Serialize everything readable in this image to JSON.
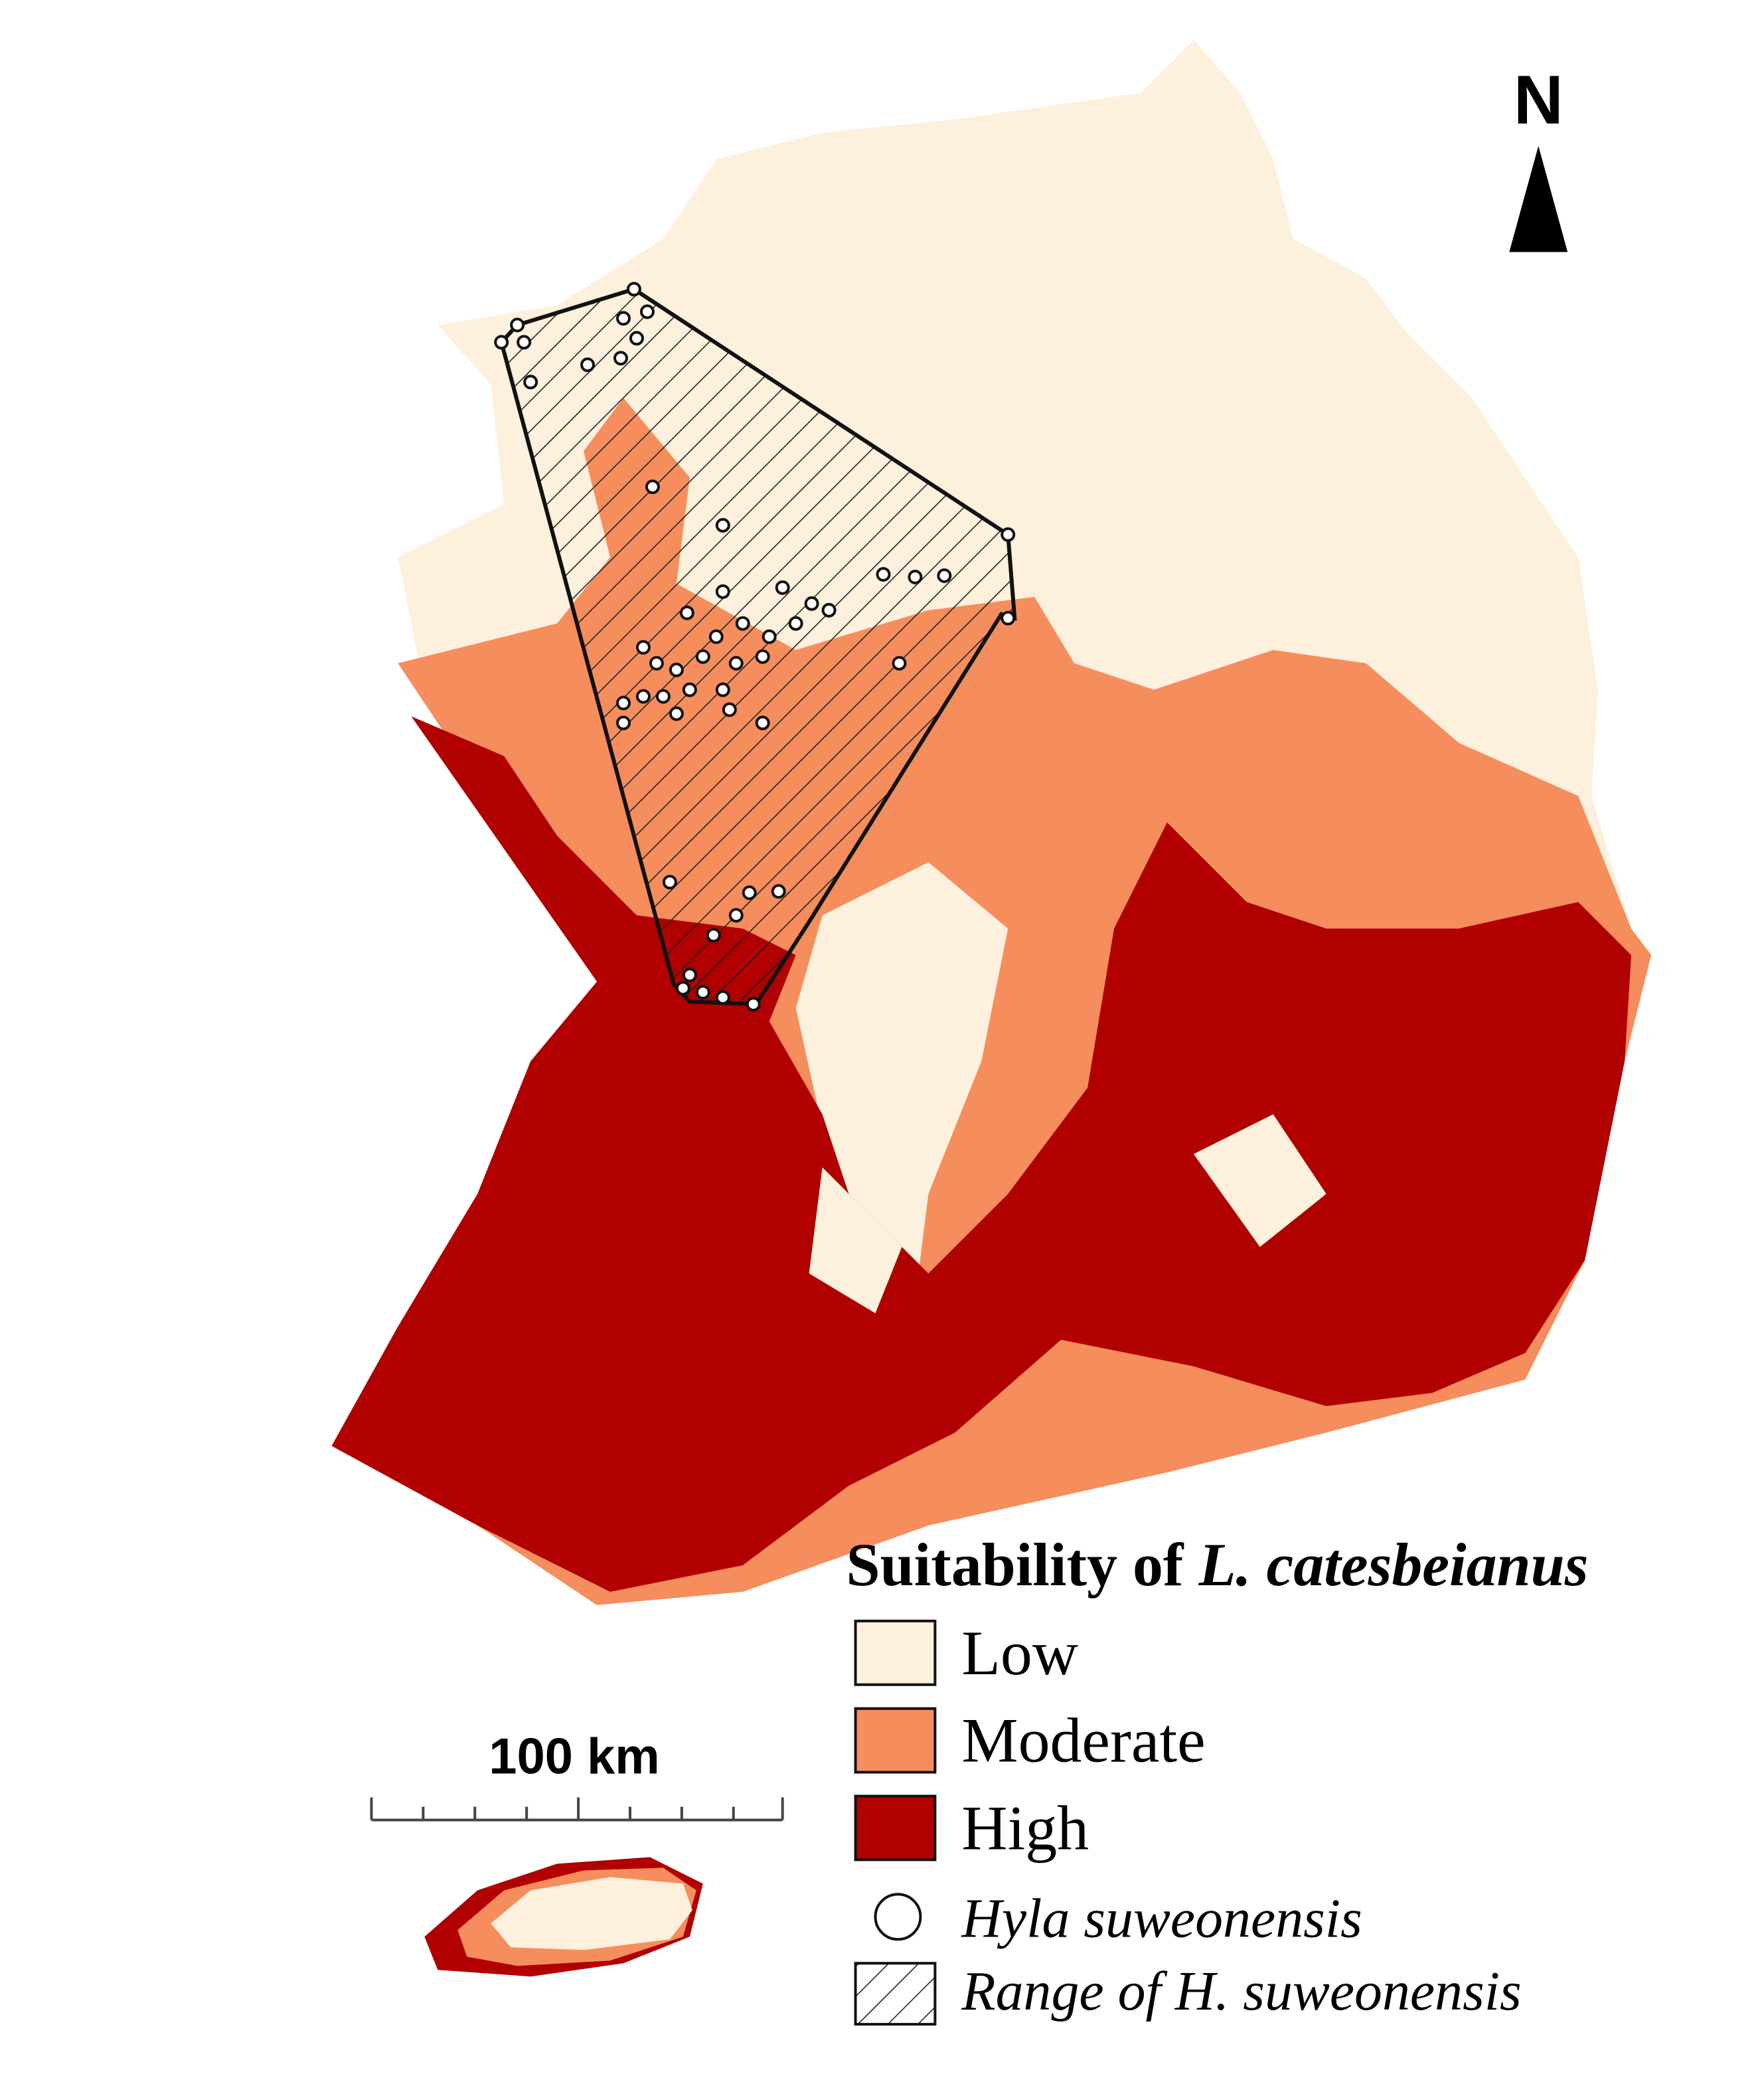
{
  "north_arrow": {
    "label": "N"
  },
  "scale_bar": {
    "label": "100 km"
  },
  "legend": {
    "title_prefix": "Suitability of",
    "title_species": "L. catesbeianus",
    "items": [
      {
        "label": "Low",
        "color": "#fdf0dc"
      },
      {
        "label": "Moderate",
        "color": "#f68d5c"
      },
      {
        "label": "High",
        "color": "#b00000"
      },
      {
        "label": "Hyla suweonensis"
      },
      {
        "label": "Range of H. suweonensis"
      }
    ]
  }
}
